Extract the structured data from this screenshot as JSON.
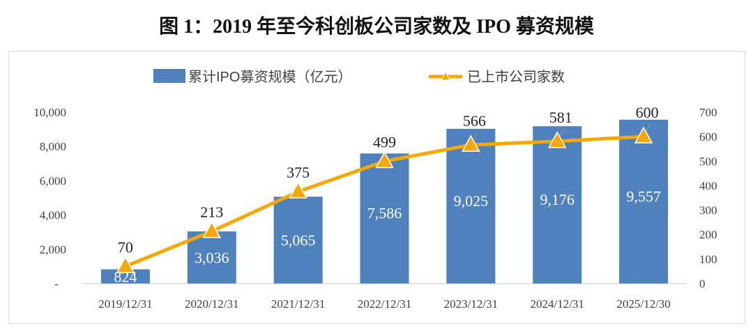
{
  "title": "图 1：2019 年至今科创板公司家数及 IPO 募资规模",
  "chart_data": {
    "type": "bar+line",
    "title": "图 1：2019 年至今科创板公司家数及 IPO 募资规模",
    "categories": [
      "2019/12/31",
      "2020/12/31",
      "2021/12/31",
      "2022/12/31",
      "2023/12/31",
      "2024/12/31",
      "2025/12/30"
    ],
    "series": [
      {
        "name": "累计IPO募资规模（亿元）",
        "type": "bar",
        "axis": "left",
        "color": "#4F81BD",
        "values": [
          824,
          3036,
          5065,
          7586,
          9025,
          9176,
          9557
        ],
        "labels": [
          "824",
          "3,036",
          "5,065",
          "7,586",
          "9,025",
          "9,176",
          "9,557"
        ]
      },
      {
        "name": "已上市公司家数",
        "type": "line",
        "axis": "right",
        "color": "#F5A800",
        "marker": "triangle",
        "values": [
          70,
          213,
          375,
          499,
          566,
          581,
          600
        ],
        "labels": [
          "70",
          "213",
          "375",
          "499",
          "566",
          "581",
          "600"
        ]
      }
    ],
    "left_axis": {
      "ylim": [
        0,
        10000
      ],
      "ticks": [
        "-",
        "2,000",
        "4,000",
        "6,000",
        "8,000",
        "10,000"
      ]
    },
    "right_axis": {
      "ylim": [
        0,
        700
      ],
      "ticks": [
        "0",
        "100",
        "200",
        "300",
        "400",
        "500",
        "600",
        "700"
      ]
    },
    "legend": "top-center",
    "grid": false
  }
}
